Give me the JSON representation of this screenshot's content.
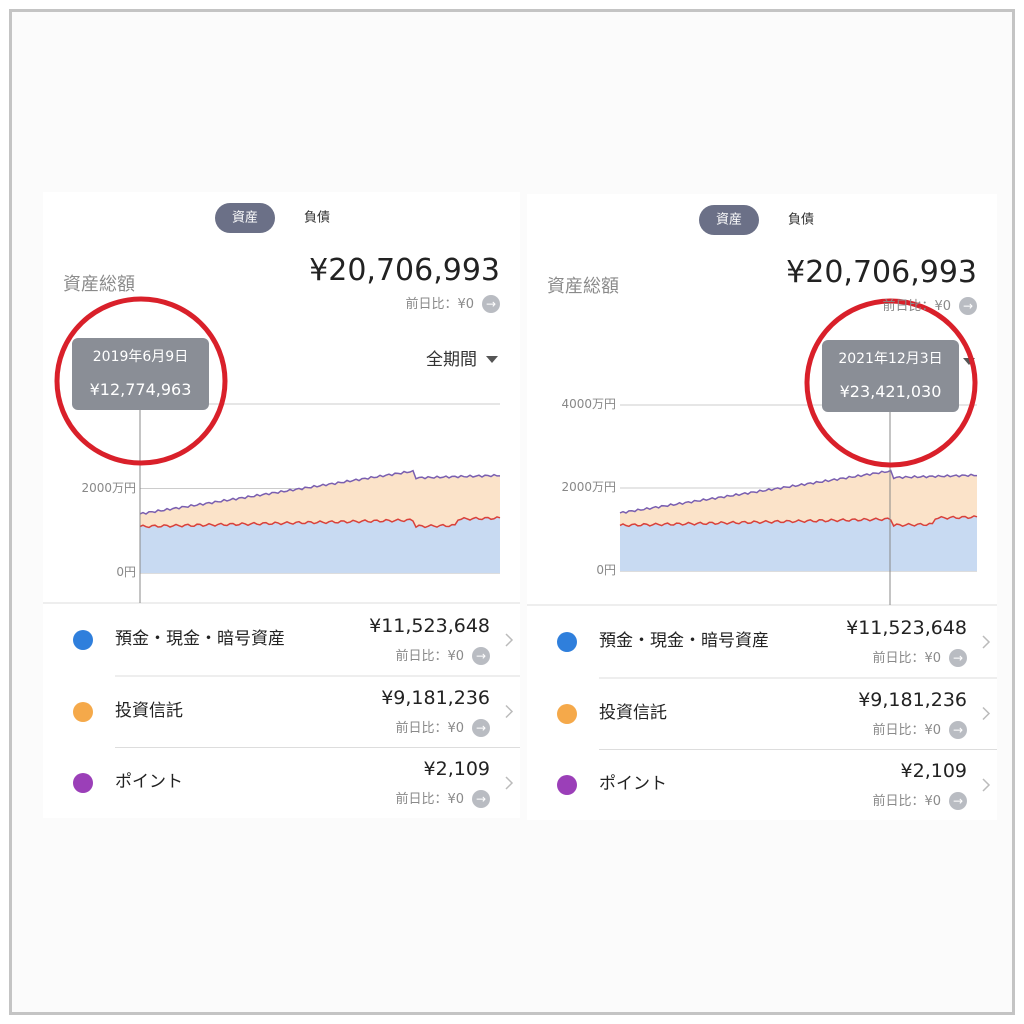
{
  "panels": [
    {
      "tabs": [
        "資産",
        "負債"
      ],
      "total_label": "資産総額",
      "total": "¥20,706,993",
      "change": "前日比：¥0",
      "period": "全期間",
      "axis_labels": [
        "0円",
        "2000万円"
      ],
      "tooltip": {
        "date": "2019年6月9日",
        "value": "¥12,774,963"
      },
      "items": [
        {
          "name": "預金・現金・暗号資産",
          "amount": "¥11,523,648",
          "change": "前日比：¥0"
        },
        {
          "name": "投資信託",
          "amount": "¥9,181,236",
          "change": "前日比：¥0"
        },
        {
          "name": "ポイント",
          "amount": "¥2,109",
          "change": "前日比：¥0"
        }
      ]
    },
    {
      "tabs": [
        "資産",
        "負債"
      ],
      "total_label": "資産総額",
      "total": "¥20,706,993",
      "change": "前日比：¥0",
      "axis_labels": [
        "0円",
        "2000万円",
        "4000万円"
      ],
      "tooltip": {
        "date": "2021年12月3日",
        "value": "¥23,421,030"
      },
      "items": [
        {
          "name": "預金・現金・暗号資産",
          "amount": "¥11,523,648",
          "change": "前日比：¥0"
        },
        {
          "name": "投資信託",
          "amount": "¥9,181,236",
          "change": "前日比：¥0"
        },
        {
          "name": "ポイント",
          "amount": "¥2,109",
          "change": "前日比：¥0"
        }
      ]
    }
  ]
}
